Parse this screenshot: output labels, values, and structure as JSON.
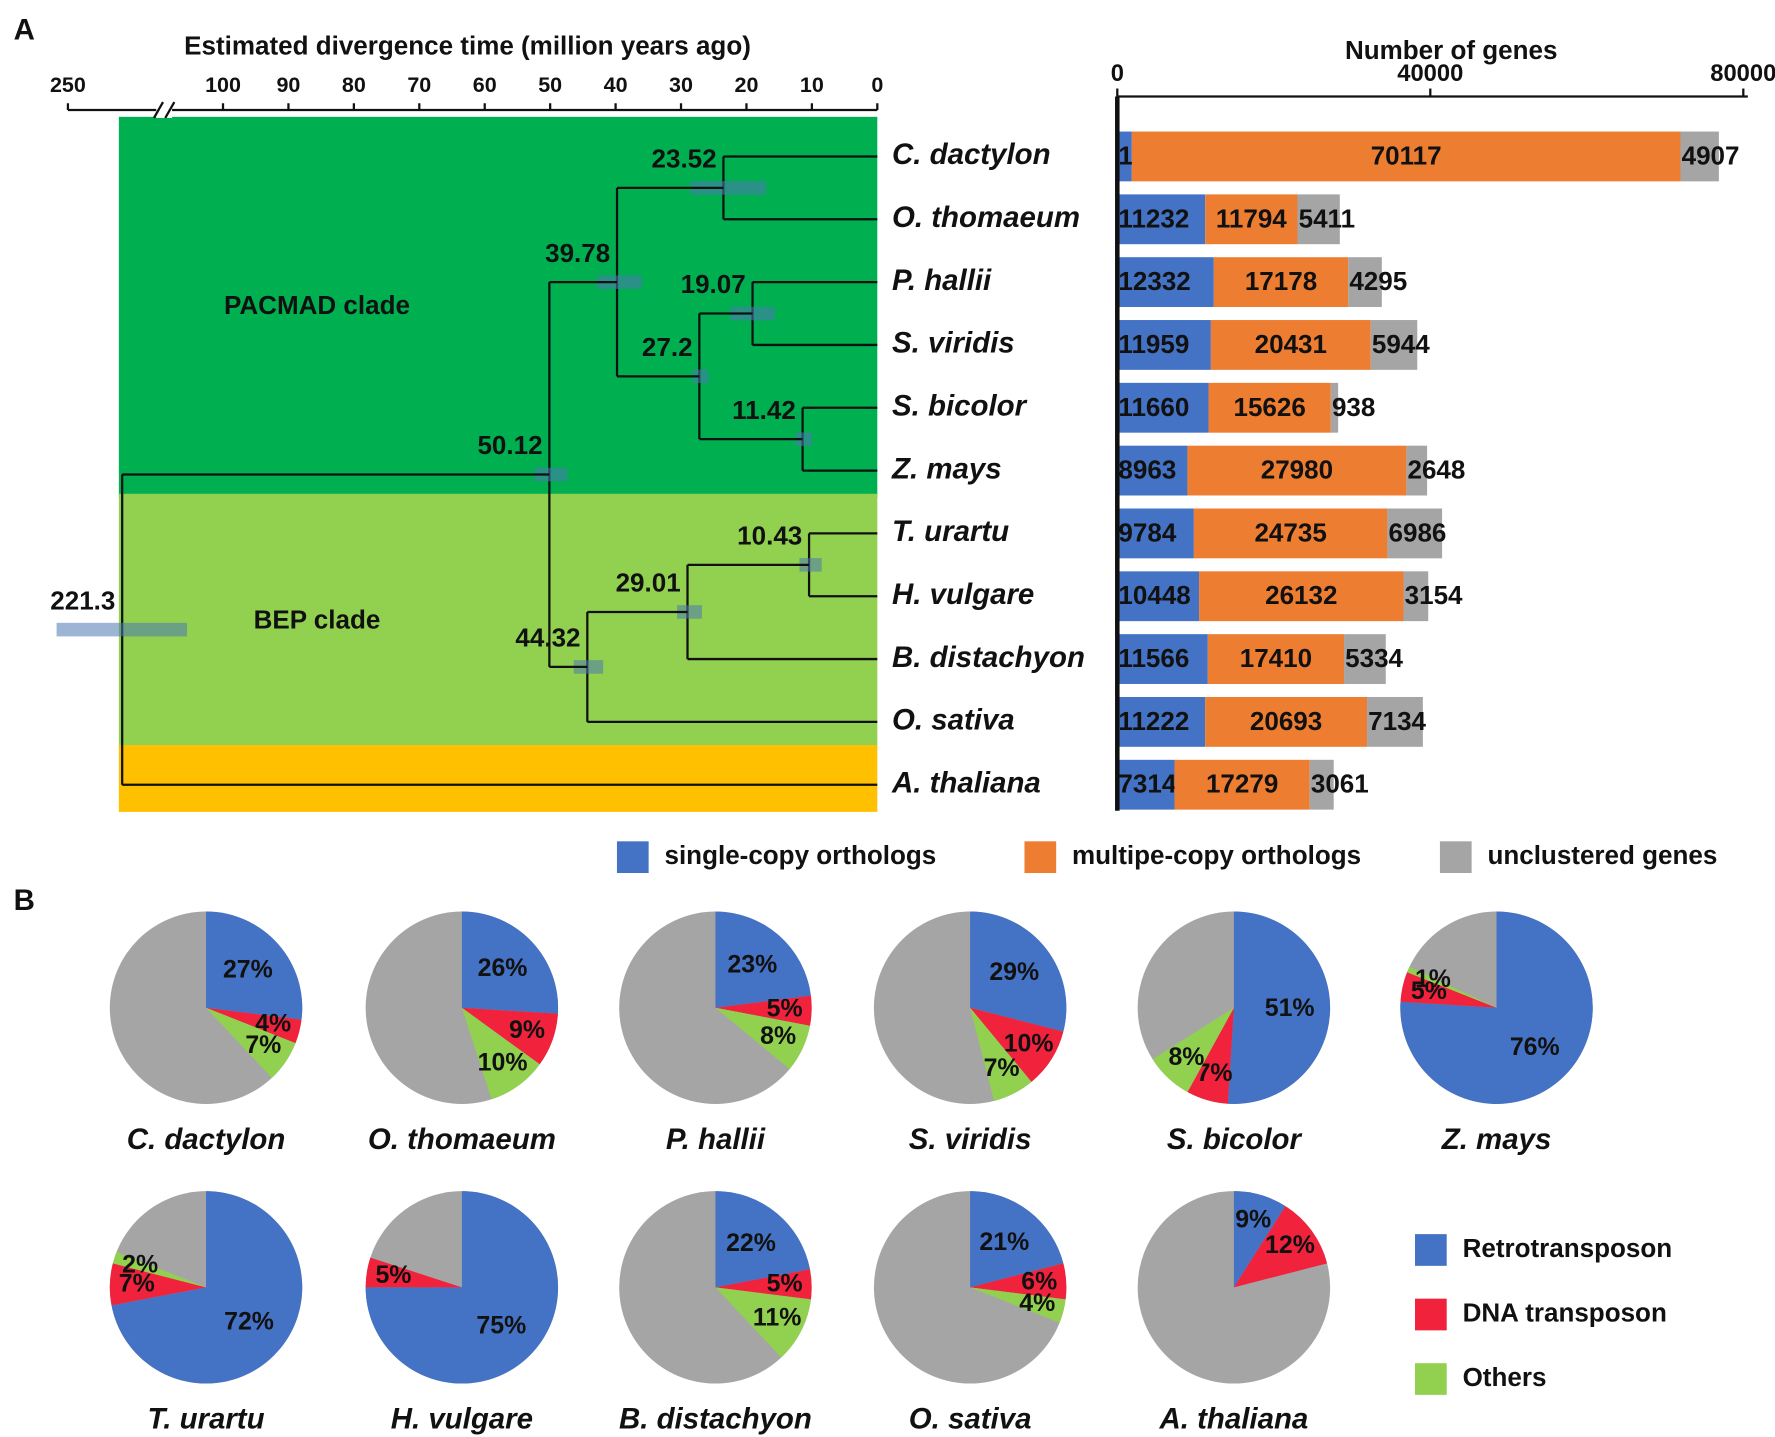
{
  "panels": [
    "A",
    "B"
  ],
  "chart_data": [
    {
      "type": "tree",
      "title": "Estimated divergence time (million years ago)",
      "xticks": [
        250,
        100,
        90,
        80,
        70,
        60,
        50,
        40,
        30,
        20,
        10,
        0
      ],
      "tree": {
        "age": 221.3,
        "ci": [
          187,
          256
        ],
        "children": [
          {
            "age": 50.12,
            "ci": [
              47.4,
              52.4
            ],
            "children": [
              {
                "age": 39.78,
                "ci": [
                  36,
                  42.9
                ],
                "clade": "PACMAD clade",
                "clade_color": "#00b050",
                "children": [
                  {
                    "age": 23.52,
                    "ci": [
                      17,
                      28.5
                    ],
                    "children": [
                      {
                        "name": "C. dactylon"
                      },
                      {
                        "name": "O. thomaeum"
                      }
                    ]
                  },
                  {
                    "age": 27.2,
                    "ci": [
                      25.8,
                      28.2
                    ],
                    "children": [
                      {
                        "age": 19.07,
                        "ci": [
                          15.7,
                          22.5
                        ],
                        "children": [
                          {
                            "name": "P. hallii"
                          },
                          {
                            "name": "S. viridis"
                          }
                        ]
                      },
                      {
                        "age": 11.42,
                        "ci": [
                          10,
                          12.5
                        ],
                        "children": [
                          {
                            "name": "S. bicolor"
                          },
                          {
                            "name": "Z. mays"
                          }
                        ]
                      }
                    ]
                  }
                ]
              },
              {
                "age": 44.32,
                "ci": [
                  41.9,
                  46.4
                ],
                "clade": "BEP clade",
                "clade_color": "#92d050",
                "children": [
                  {
                    "age": 29.01,
                    "ci": [
                      26.8,
                      30.6
                    ],
                    "children": [
                      {
                        "age": 10.43,
                        "ci": [
                          8.5,
                          11.9
                        ],
                        "children": [
                          {
                            "name": "T. urartu"
                          },
                          {
                            "name": "H. vulgare"
                          }
                        ]
                      },
                      {
                        "name": "B. distachyon"
                      }
                    ]
                  },
                  {
                    "name": "O. sativa"
                  }
                ]
              }
            ]
          },
          {
            "name": "A. thaliana",
            "clade_color": "#ffc000"
          }
        ]
      }
    },
    {
      "type": "bar",
      "title": "Number of genes",
      "orientation": "horizontal",
      "stacked": true,
      "xlim": [
        0,
        80000
      ],
      "xticks": [
        0,
        40000,
        80000
      ],
      "series": [
        {
          "name": "single-copy orthologs",
          "color": "#4472c4",
          "values": [
            1855,
            11232,
            12332,
            11959,
            11660,
            8963,
            9784,
            10448,
            11566,
            11222,
            7314
          ]
        },
        {
          "name": "multipe-copy orthologs",
          "color": "#ed7d31",
          "values": [
            70117,
            11794,
            17178,
            20431,
            15626,
            27980,
            24735,
            26132,
            17410,
            20693,
            17279
          ]
        },
        {
          "name": "unclustered genes",
          "color": "#a5a5a5",
          "values": [
            4907,
            5411,
            4295,
            5944,
            938,
            2648,
            6986,
            3154,
            5334,
            7134,
            3061
          ]
        }
      ]
    },
    {
      "type": "pie",
      "rest_color": "#a5a5a5",
      "series": [
        {
          "name": "Retrotransposon",
          "color": "#4472c4"
        },
        {
          "name": "DNA transposon",
          "color": "#f0223c"
        },
        {
          "name": "Others",
          "color": "#92d050"
        }
      ],
      "pies": [
        {
          "title": "C. dactylon",
          "values": [
            27,
            4,
            7
          ],
          "value_labels": [
            "27%",
            "4%",
            "7%"
          ]
        },
        {
          "title": "O. thomaeum",
          "values": [
            26,
            9,
            10
          ],
          "value_labels": [
            "26%",
            "9%",
            "10%"
          ]
        },
        {
          "title": "P. hallii",
          "values": [
            23,
            5,
            8
          ],
          "value_labels": [
            "23%",
            "5%",
            "8%"
          ]
        },
        {
          "title": "S. viridis",
          "values": [
            29,
            10,
            7
          ],
          "value_labels": [
            "29%",
            "10%",
            "7%"
          ]
        },
        {
          "title": "S. bicolor",
          "values": [
            51,
            7,
            8
          ],
          "value_labels": [
            "51%",
            "7%",
            "8%"
          ]
        },
        {
          "title": "Z. mays",
          "values": [
            76,
            5,
            1
          ],
          "value_labels": [
            "76%",
            "5%",
            "1%"
          ]
        },
        {
          "title": "T. urartu",
          "values": [
            72,
            7,
            2
          ],
          "value_labels": [
            "72%",
            "7%",
            "2%"
          ]
        },
        {
          "title": "H. vulgare",
          "values": [
            75,
            5,
            null
          ],
          "value_labels": [
            "75%",
            "5%",
            null
          ]
        },
        {
          "title": "B. distachyon",
          "values": [
            22,
            5,
            11
          ],
          "value_labels": [
            "22%",
            "5%",
            "11%"
          ]
        },
        {
          "title": "O. sativa",
          "values": [
            21,
            6,
            4
          ],
          "value_labels": [
            "21%",
            "6%",
            "4%"
          ]
        },
        {
          "title": "A. thaliana",
          "values": [
            9,
            12,
            null
          ],
          "value_labels": [
            "9%",
            "12%",
            null
          ]
        }
      ]
    }
  ]
}
